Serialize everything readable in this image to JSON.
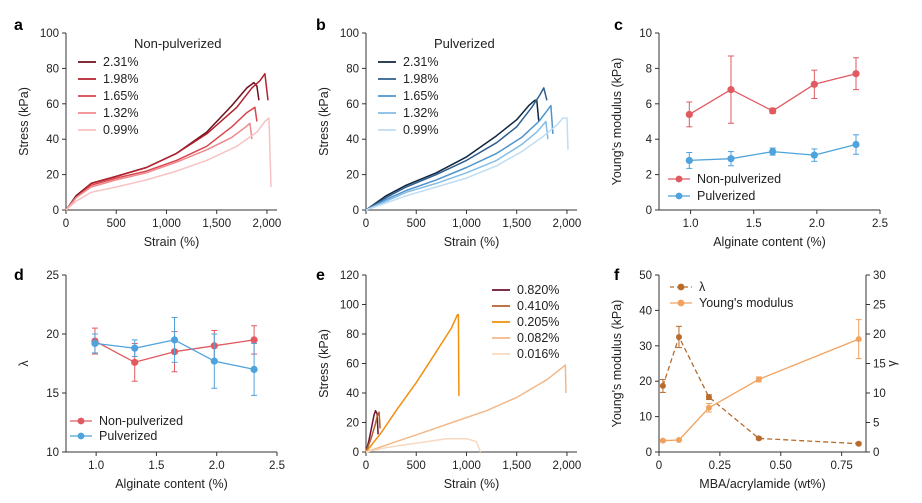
{
  "panels": {
    "a": "a",
    "b": "b",
    "c": "c",
    "d": "d",
    "e": "e",
    "f": "f"
  },
  "chart_data": [
    {
      "id": "a",
      "type": "line",
      "title": "Non-pulverized",
      "xlabel": "Strain (%)",
      "ylabel": "Stress (kPa)",
      "xlim": [
        0,
        2100
      ],
      "ylim": [
        0,
        100
      ],
      "xticks": [
        0,
        500,
        1000,
        1500,
        2000
      ],
      "xtick_labels": [
        "0",
        "500",
        "1,000",
        "1,500",
        "2,000"
      ],
      "yticks": [
        0,
        20,
        40,
        60,
        80,
        100
      ],
      "ytick_labels": [
        "0",
        "20",
        "40",
        "60",
        "80",
        "100"
      ],
      "legend": "top-left",
      "series": [
        {
          "name": "2.31%",
          "color": "#6d0f1c",
          "x": [
            0,
            100,
            250,
            500,
            800,
            1100,
            1400,
            1650,
            1800,
            1870,
            1900,
            1920
          ],
          "y": [
            0,
            8,
            15,
            19,
            24,
            32,
            44,
            59,
            69,
            72,
            70,
            62
          ]
        },
        {
          "name": "1.98%",
          "color": "#b2212e",
          "x": [
            0,
            100,
            250,
            500,
            800,
            1100,
            1400,
            1700,
            1850,
            1930,
            1980,
            2010
          ],
          "y": [
            0,
            7,
            15,
            19,
            24,
            32,
            43,
            58,
            69,
            73,
            77,
            62
          ]
        },
        {
          "name": "1.65%",
          "color": "#d9464e",
          "x": [
            0,
            100,
            250,
            500,
            800,
            1100,
            1400,
            1650,
            1800,
            1880,
            1900
          ],
          "y": [
            0,
            7,
            14,
            18,
            22,
            28,
            36,
            47,
            55,
            58,
            50
          ]
        },
        {
          "name": "1.32%",
          "color": "#ee8a8e",
          "x": [
            0,
            100,
            250,
            500,
            800,
            1100,
            1400,
            1650,
            1790,
            1830,
            1850
          ],
          "y": [
            0,
            7,
            13,
            17,
            21,
            27,
            34,
            41,
            47,
            49,
            40
          ]
        },
        {
          "name": "0.99%",
          "color": "#f6c3c2",
          "x": [
            0,
            100,
            250,
            500,
            800,
            1100,
            1400,
            1700,
            1900,
            1980,
            2020,
            2040
          ],
          "y": [
            0,
            5,
            10,
            13,
            17,
            22,
            28,
            36,
            44,
            50,
            52,
            13
          ]
        }
      ]
    },
    {
      "id": "b",
      "type": "line",
      "title": "Pulverized",
      "xlabel": "Strain (%)",
      "ylabel": "Stress (kPa)",
      "xlim": [
        0,
        2100
      ],
      "ylim": [
        0,
        100
      ],
      "xticks": [
        0,
        500,
        1000,
        1500,
        2000
      ],
      "xtick_labels": [
        "0",
        "500",
        "1,000",
        "1,500",
        "2,000"
      ],
      "yticks": [
        0,
        20,
        40,
        60,
        80,
        100
      ],
      "ytick_labels": [
        "0",
        "20",
        "40",
        "60",
        "80",
        "100"
      ],
      "legend": "top-left",
      "series": [
        {
          "name": "2.31%",
          "color": "#10263f",
          "x": [
            0,
            200,
            400,
            700,
            1000,
            1300,
            1500,
            1620,
            1680,
            1700,
            1720
          ],
          "y": [
            0,
            8,
            14,
            21,
            30,
            42,
            51,
            59,
            62,
            62,
            50
          ]
        },
        {
          "name": "1.98%",
          "color": "#2e5f8e",
          "x": [
            0,
            200,
            400,
            700,
            1000,
            1300,
            1500,
            1650,
            1730,
            1770,
            1800
          ],
          "y": [
            0,
            7,
            13,
            20,
            28,
            38,
            47,
            58,
            65,
            69,
            62
          ]
        },
        {
          "name": "1.65%",
          "color": "#4e94cc",
          "x": [
            0,
            200,
            400,
            700,
            1000,
            1300,
            1550,
            1720,
            1800,
            1840,
            1860
          ],
          "y": [
            0,
            6,
            11,
            17,
            24,
            32,
            41,
            50,
            56,
            59,
            43
          ]
        },
        {
          "name": "1.32%",
          "color": "#84bde6",
          "x": [
            0,
            200,
            400,
            700,
            1000,
            1300,
            1550,
            1700,
            1790,
            1810
          ],
          "y": [
            0,
            5,
            10,
            15,
            21,
            28,
            37,
            44,
            50,
            40
          ]
        },
        {
          "name": "0.99%",
          "color": "#bfddf3",
          "x": [
            0,
            200,
            400,
            700,
            1000,
            1300,
            1550,
            1750,
            1900,
            1960,
            2000,
            2010
          ],
          "y": [
            0,
            4,
            8,
            13,
            18,
            25,
            33,
            41,
            48,
            52,
            52,
            34
          ]
        }
      ]
    },
    {
      "id": "c",
      "type": "line",
      "title": "",
      "xlabel": "Alginate content (%)",
      "ylabel": "Young's modulus (kPa)",
      "xlim": [
        0.75,
        2.5
      ],
      "ylim": [
        0,
        10
      ],
      "xticks": [
        1.0,
        1.5,
        2.0,
        2.5
      ],
      "xtick_labels": [
        "1.0",
        "1.5",
        "2.0",
        "2.5"
      ],
      "yticks": [
        0,
        2,
        4,
        6,
        8,
        10
      ],
      "ytick_labels": [
        "0",
        "2",
        "4",
        "6",
        "8",
        "10"
      ],
      "legend": "bottom-left",
      "series": [
        {
          "name": "Non-pulverized",
          "color": "#e05a60",
          "x": [
            0.99,
            1.32,
            1.65,
            1.98,
            2.31
          ],
          "y": [
            5.4,
            6.8,
            5.6,
            7.1,
            7.7
          ],
          "err": [
            0.7,
            1.9,
            0.15,
            0.8,
            0.9
          ]
        },
        {
          "name": "Pulverized",
          "color": "#4fa3dc",
          "x": [
            0.99,
            1.32,
            1.65,
            1.98,
            2.31
          ],
          "y": [
            2.8,
            2.9,
            3.3,
            3.1,
            3.7
          ],
          "err": [
            0.45,
            0.4,
            0.2,
            0.35,
            0.55
          ]
        }
      ]
    },
    {
      "id": "d",
      "type": "line",
      "title": "",
      "xlabel": "Alginate content (%)",
      "ylabel": "λ",
      "xlim": [
        0.75,
        2.5
      ],
      "ylim": [
        10,
        25
      ],
      "xticks": [
        1.0,
        1.5,
        2.0,
        2.5
      ],
      "xtick_labels": [
        "1.0",
        "1.5",
        "2.0",
        "2.5"
      ],
      "yticks": [
        10,
        15,
        20,
        25
      ],
      "ytick_labels": [
        "10",
        "15",
        "20",
        "25"
      ],
      "legend": "bottom-left",
      "series": [
        {
          "name": "Non-pulverized",
          "color": "#e05a60",
          "x": [
            0.99,
            1.32,
            1.65,
            1.98,
            2.31
          ],
          "y": [
            19.4,
            17.6,
            18.5,
            19.0,
            19.5
          ],
          "err": [
            1.1,
            1.6,
            1.7,
            1.3,
            1.2
          ]
        },
        {
          "name": "Pulverized",
          "color": "#4fa3dc",
          "x": [
            0.99,
            1.32,
            1.65,
            1.98,
            2.31
          ],
          "y": [
            19.2,
            18.8,
            19.5,
            17.7,
            17.0
          ],
          "err": [
            0.8,
            0.7,
            1.9,
            2.3,
            2.2
          ]
        }
      ]
    },
    {
      "id": "e",
      "type": "line",
      "title": "",
      "xlabel": "Strain (%)",
      "ylabel": "Stress (kPa)",
      "xlim": [
        0,
        2100
      ],
      "ylim": [
        0,
        120
      ],
      "xticks": [
        0,
        500,
        1000,
        1500,
        2000
      ],
      "xtick_labels": [
        "0",
        "500",
        "1,000",
        "1,500",
        "2,000"
      ],
      "yticks": [
        0,
        20,
        40,
        60,
        80,
        100,
        120
      ],
      "ytick_labels": [
        "0",
        "20",
        "40",
        "60",
        "80",
        "100",
        "120"
      ],
      "legend": "top-right",
      "series": [
        {
          "name": "0.820%",
          "color": "#6e1033",
          "x": [
            0,
            30,
            60,
            80,
            95,
            110,
            120
          ],
          "y": [
            0,
            8,
            18,
            25,
            28,
            26,
            12
          ]
        },
        {
          "name": "0.410%",
          "color": "#b4602a",
          "x": [
            0,
            50,
            90,
            110,
            130,
            140
          ],
          "y": [
            0,
            9,
            18,
            24,
            27,
            16
          ]
        },
        {
          "name": "0.205%",
          "color": "#f0900e",
          "x": [
            0,
            150,
            300,
            500,
            700,
            850,
            910,
            920,
            925
          ],
          "y": [
            0,
            13,
            28,
            47,
            68,
            84,
            93,
            93,
            38
          ]
        },
        {
          "name": "0.082%",
          "color": "#f3b889",
          "x": [
            0,
            300,
            600,
            900,
            1200,
            1500,
            1800,
            1950,
            1985,
            1990
          ],
          "y": [
            0,
            7,
            14,
            21,
            28,
            37,
            49,
            57,
            59,
            40
          ]
        },
        {
          "name": "0.016%",
          "color": "#f8d9c0",
          "x": [
            0,
            200,
            400,
            600,
            800,
            1000,
            1100,
            1140
          ],
          "y": [
            0,
            3,
            5,
            7,
            9,
            9,
            7,
            0
          ]
        }
      ]
    },
    {
      "id": "f",
      "type": "line",
      "title": "",
      "xlabel": "MBA/acrylamide (wt%)",
      "ylabel": "Young's modulus (kPa)",
      "y2label": "γ",
      "xlim": [
        0,
        0.85
      ],
      "ylim": [
        0,
        50
      ],
      "y2lim": [
        0,
        30
      ],
      "xticks": [
        0,
        0.25,
        0.5,
        0.75
      ],
      "xtick_labels": [
        "0",
        "0.25",
        "0.50",
        "0.75"
      ],
      "yticks": [
        0,
        10,
        20,
        30,
        40,
        50
      ],
      "ytick_labels": [
        "0",
        "10",
        "20",
        "30",
        "40",
        "50"
      ],
      "y2ticks": [
        0,
        5,
        10,
        15,
        20,
        25,
        30
      ],
      "y2tick_labels": [
        "0",
        "5",
        "10",
        "15",
        "20",
        "25",
        "30"
      ],
      "legend": "top-left",
      "series": [
        {
          "name": "λ",
          "color": "#b76b2c",
          "axis": "y2",
          "dashed": true,
          "x": [
            0.016,
            0.082,
            0.205,
            0.41,
            0.82
          ],
          "y": [
            11.2,
            19.5,
            9.3,
            2.3,
            1.4
          ],
          "err": [
            1.1,
            1.8,
            0.4,
            0.2,
            0.2
          ]
        },
        {
          "name": "Young's modulus",
          "color": "#f2a25f",
          "axis": "y",
          "dashed": false,
          "x": [
            0.016,
            0.082,
            0.205,
            0.41,
            0.82
          ],
          "y": [
            3.2,
            3.4,
            12.5,
            20.5,
            31.9
          ],
          "err": [
            0.3,
            0.3,
            1.2,
            0.7,
            5.5
          ]
        }
      ]
    }
  ]
}
